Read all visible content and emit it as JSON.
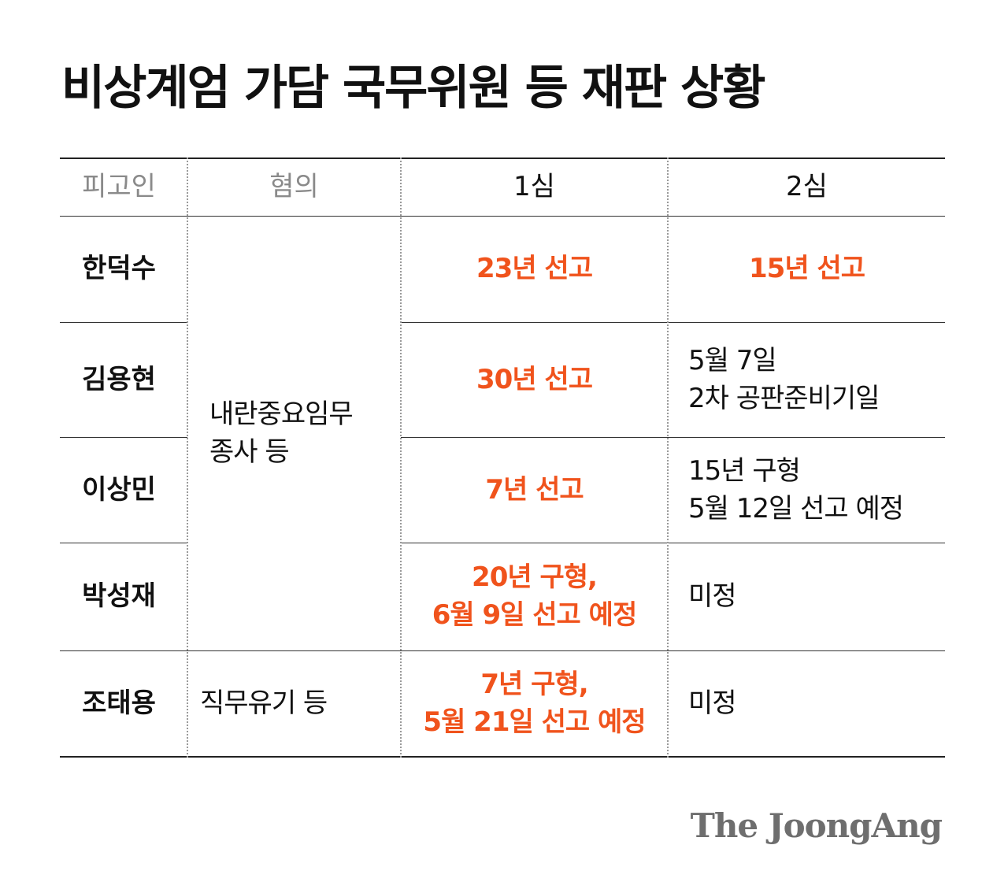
{
  "title": "비상계엄 가담 국무위원 등 재판 상황",
  "header": {
    "defendant": "피고인",
    "charge": "혐의",
    "first_trial": "1심",
    "second_trial": "2심"
  },
  "charges": {
    "main": [
      "내란중요임무",
      "종사 등"
    ],
    "jo": "직무유기 등"
  },
  "rows": [
    {
      "name": "한덕수",
      "first": [
        "23년 선고"
      ],
      "second": [
        "15년 선고"
      ]
    },
    {
      "name": "김용현",
      "first": [
        "30년 선고"
      ],
      "second": [
        "5월 7일",
        "2차 공판준비기일"
      ]
    },
    {
      "name": "이상민",
      "first": [
        "7년 선고"
      ],
      "second": [
        "15년 구형",
        "5월 12일 선고 예정"
      ]
    },
    {
      "name": "박성재",
      "first": [
        "20년 구형,",
        "6월 9일 선고 예정"
      ],
      "second": [
        "미정"
      ]
    },
    {
      "name": "조태용",
      "first": [
        "7년 구형,",
        "5월 21일 선고 예정"
      ],
      "second": [
        "미정"
      ]
    }
  ],
  "logo": "The JoongAng",
  "colors": {
    "accent": "#f0531c",
    "text": "#111111",
    "header_muted": "#8a8a8a"
  }
}
